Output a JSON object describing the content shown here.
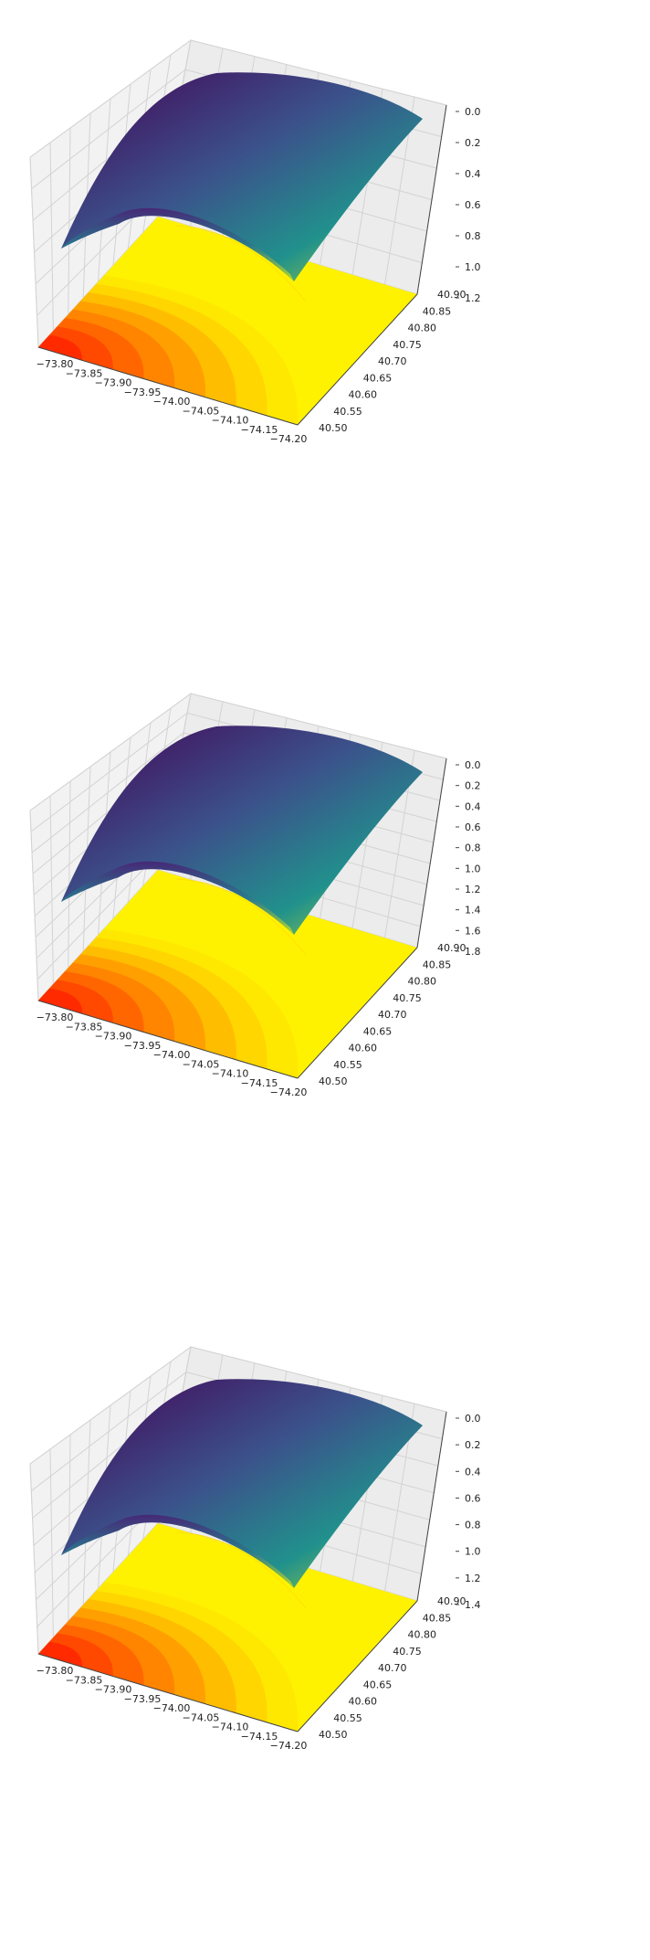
{
  "chart_data": [
    {
      "type": "surface3d",
      "x_ticks": [
        "−73.80",
        "−73.85",
        "−73.90",
        "−73.95",
        "−74.00",
        "−74.05",
        "−74.10",
        "−74.15",
        "−74.20"
      ],
      "y_ticks": [
        "40.50",
        "40.55",
        "40.60",
        "40.65",
        "40.70",
        "40.75",
        "40.80",
        "40.85",
        "40.90"
      ],
      "z_ticks": [
        "0.0",
        "0.2",
        "0.4",
        "0.6",
        "0.8",
        "1.0",
        "1.2"
      ],
      "xlim": [
        -73.8,
        -74.2
      ],
      "ylim": [
        40.5,
        40.9
      ],
      "zlim": [
        0.0,
        1.2
      ],
      "z_inverted": true,
      "surface_colormap": "viridis",
      "contour_colormap": "autumn",
      "contour_projection": "floor"
    },
    {
      "type": "surface3d",
      "x_ticks": [
        "−73.80",
        "−73.85",
        "−73.90",
        "−73.95",
        "−74.00",
        "−74.05",
        "−74.10",
        "−74.15",
        "−74.20"
      ],
      "y_ticks": [
        "40.50",
        "40.55",
        "40.60",
        "40.65",
        "40.70",
        "40.75",
        "40.80",
        "40.85",
        "40.90"
      ],
      "z_ticks": [
        "0.0",
        "0.2",
        "0.4",
        "0.6",
        "0.8",
        "1.0",
        "1.2",
        "1.4",
        "1.6",
        "1.8"
      ],
      "xlim": [
        -73.8,
        -74.2
      ],
      "ylim": [
        40.5,
        40.9
      ],
      "zlim": [
        0.0,
        1.8
      ],
      "z_inverted": true,
      "surface_colormap": "viridis",
      "contour_colormap": "autumn",
      "contour_projection": "floor"
    },
    {
      "type": "surface3d",
      "x_ticks": [
        "−73.80",
        "−73.85",
        "−73.90",
        "−73.95",
        "−74.00",
        "−74.05",
        "−74.10",
        "−74.15",
        "−74.20"
      ],
      "y_ticks": [
        "40.50",
        "40.55",
        "40.60",
        "40.65",
        "40.70",
        "40.75",
        "40.80",
        "40.85",
        "40.90"
      ],
      "z_ticks": [
        "0.0",
        "0.2",
        "0.4",
        "0.6",
        "0.8",
        "1.0",
        "1.2",
        "1.4"
      ],
      "xlim": [
        -73.8,
        -74.2
      ],
      "ylim": [
        40.5,
        40.9
      ],
      "zlim": [
        0.0,
        1.4
      ],
      "z_inverted": true,
      "surface_colormap": "viridis",
      "contour_colormap": "autumn",
      "contour_projection": "floor"
    }
  ],
  "colors": {
    "pane": "#f2f2f2",
    "grid": "#d3d3d3",
    "floor_base": "#fff200",
    "contour_bands": [
      "#ff2a00",
      "#ff4800",
      "#ff6600",
      "#ff8400",
      "#ffa000",
      "#ffbd00",
      "#ffd600",
      "#ffe800"
    ],
    "surface_dark": "#440154",
    "surface_mid": "#21918c",
    "surface_light": "#bddf26"
  }
}
